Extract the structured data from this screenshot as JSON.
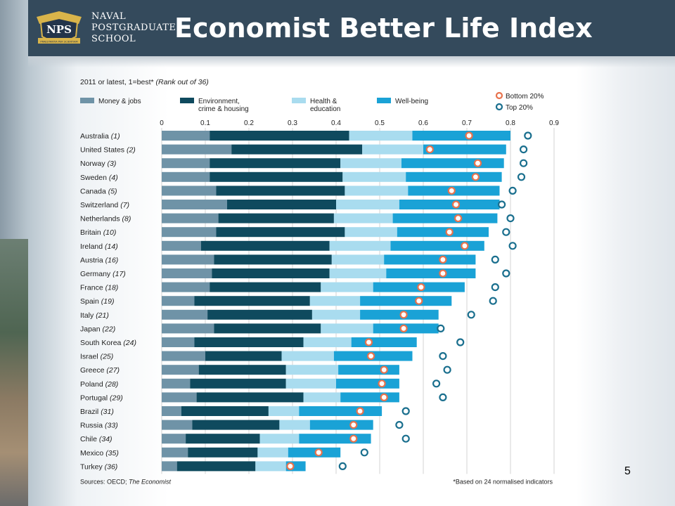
{
  "header": {
    "school_lines": [
      "NAVAL",
      "POSTGRADUATE",
      "SCHOOL"
    ],
    "logo_text": "NPS",
    "logo_motto": "PRAESTANTIA PER SCIENTIAM",
    "title": "Economist Better Life Index"
  },
  "page_number": "5",
  "colors": {
    "header_bg": "#344a5c",
    "money_jobs": "#6f93a7",
    "environment": "#0f4a5e",
    "health": "#a9dcef",
    "wellbeing": "#1aa2d6",
    "bottom_marker": "#e8734d",
    "top_marker": "#1a6f8e"
  },
  "chart_data": {
    "type": "bar",
    "orientation": "horizontal",
    "stacked": true,
    "subtitle_main": "2011 or latest, 1=best*",
    "subtitle_note": "(Rank out of 36)",
    "legend": [
      {
        "key": "money",
        "label": [
          "Money & jobs"
        ]
      },
      {
        "key": "env",
        "label": [
          "Environment,",
          "crime & housing"
        ]
      },
      {
        "key": "health",
        "label": [
          "Health &",
          "education"
        ]
      },
      {
        "key": "well",
        "label": [
          "Well-being"
        ]
      }
    ],
    "marker_legend": {
      "bottom": "Bottom 20%",
      "top": "Top 20%"
    },
    "xlim": [
      0,
      0.9
    ],
    "xticks": [
      "0",
      "0.1",
      "0.2",
      "0.3",
      "0.4",
      "0.5",
      "0.6",
      "0.7",
      "0.8",
      "0.9"
    ],
    "xtick_values": [
      0,
      0.1,
      0.2,
      0.3,
      0.4,
      0.5,
      0.6,
      0.7,
      0.8,
      0.9
    ],
    "grid": true,
    "countries": [
      {
        "name": "Australia",
        "rank": "(1)",
        "segments": [
          0.11,
          0.32,
          0.145,
          0.225
        ],
        "bottom": 0.705,
        "top": 0.84
      },
      {
        "name": "United States",
        "rank": "(2)",
        "segments": [
          0.16,
          0.3,
          0.14,
          0.19
        ],
        "bottom": 0.615,
        "top": 0.83
      },
      {
        "name": "Norway",
        "rank": "(3)",
        "segments": [
          0.11,
          0.3,
          0.14,
          0.235
        ],
        "bottom": 0.725,
        "top": 0.83
      },
      {
        "name": "Sweden",
        "rank": "(4)",
        "segments": [
          0.11,
          0.305,
          0.145,
          0.22
        ],
        "bottom": 0.72,
        "top": 0.825
      },
      {
        "name": "Canada",
        "rank": "(5)",
        "segments": [
          0.125,
          0.295,
          0.145,
          0.21
        ],
        "bottom": 0.665,
        "top": 0.805
      },
      {
        "name": "Switzerland",
        "rank": "(7)",
        "segments": [
          0.15,
          0.25,
          0.145,
          0.23
        ],
        "bottom": 0.675,
        "top": 0.78
      },
      {
        "name": "Netherlands",
        "rank": "(8)",
        "segments": [
          0.13,
          0.265,
          0.135,
          0.24
        ],
        "bottom": 0.68,
        "top": 0.8
      },
      {
        "name": "Britain",
        "rank": "(10)",
        "segments": [
          0.125,
          0.295,
          0.12,
          0.21
        ],
        "bottom": 0.66,
        "top": 0.79
      },
      {
        "name": "Ireland",
        "rank": "(14)",
        "segments": [
          0.09,
          0.295,
          0.14,
          0.215
        ],
        "bottom": 0.695,
        "top": 0.805
      },
      {
        "name": "Austria",
        "rank": "(16)",
        "segments": [
          0.12,
          0.27,
          0.12,
          0.21
        ],
        "bottom": 0.645,
        "top": 0.765
      },
      {
        "name": "Germany",
        "rank": "(17)",
        "segments": [
          0.115,
          0.27,
          0.13,
          0.205
        ],
        "bottom": 0.645,
        "top": 0.79
      },
      {
        "name": "France",
        "rank": "(18)",
        "segments": [
          0.11,
          0.255,
          0.12,
          0.21
        ],
        "bottom": 0.595,
        "top": 0.765
      },
      {
        "name": "Spain",
        "rank": "(19)",
        "segments": [
          0.075,
          0.265,
          0.115,
          0.21
        ],
        "bottom": 0.59,
        "top": 0.76
      },
      {
        "name": "Italy",
        "rank": "(21)",
        "segments": [
          0.105,
          0.24,
          0.11,
          0.18
        ],
        "bottom": 0.555,
        "top": 0.71
      },
      {
        "name": "Japan",
        "rank": "(22)",
        "segments": [
          0.12,
          0.245,
          0.12,
          0.15
        ],
        "bottom": 0.555,
        "top": 0.64
      },
      {
        "name": "South Korea",
        "rank": "(24)",
        "segments": [
          0.075,
          0.25,
          0.11,
          0.15
        ],
        "bottom": 0.475,
        "top": 0.685
      },
      {
        "name": "Israel",
        "rank": "(25)",
        "segments": [
          0.1,
          0.175,
          0.12,
          0.18
        ],
        "bottom": 0.48,
        "top": 0.645
      },
      {
        "name": "Greece",
        "rank": "(27)",
        "segments": [
          0.085,
          0.2,
          0.12,
          0.14
        ],
        "bottom": 0.51,
        "top": 0.655
      },
      {
        "name": "Poland",
        "rank": "(28)",
        "segments": [
          0.065,
          0.22,
          0.115,
          0.145
        ],
        "bottom": 0.505,
        "top": 0.63
      },
      {
        "name": "Portugal",
        "rank": "(29)",
        "segments": [
          0.08,
          0.245,
          0.085,
          0.135
        ],
        "bottom": 0.51,
        "top": 0.645
      },
      {
        "name": "Brazil",
        "rank": "(31)",
        "segments": [
          0.045,
          0.2,
          0.07,
          0.19
        ],
        "bottom": 0.455,
        "top": 0.56
      },
      {
        "name": "Russia",
        "rank": "(33)",
        "segments": [
          0.07,
          0.2,
          0.07,
          0.145
        ],
        "bottom": 0.44,
        "top": 0.545
      },
      {
        "name": "Chile",
        "rank": "(34)",
        "segments": [
          0.055,
          0.17,
          0.09,
          0.165
        ],
        "bottom": 0.44,
        "top": 0.56
      },
      {
        "name": "Mexico",
        "rank": "(35)",
        "segments": [
          0.06,
          0.16,
          0.07,
          0.12
        ],
        "bottom": 0.36,
        "top": 0.465
      },
      {
        "name": "Turkey",
        "rank": "(36)",
        "segments": [
          0.035,
          0.18,
          0.07,
          0.045
        ],
        "bottom": 0.295,
        "top": 0.415
      }
    ],
    "source_label": "Sources: OECD;",
    "source_name": "The Economist",
    "footnote": "*Based on 24 normalised indicators"
  }
}
